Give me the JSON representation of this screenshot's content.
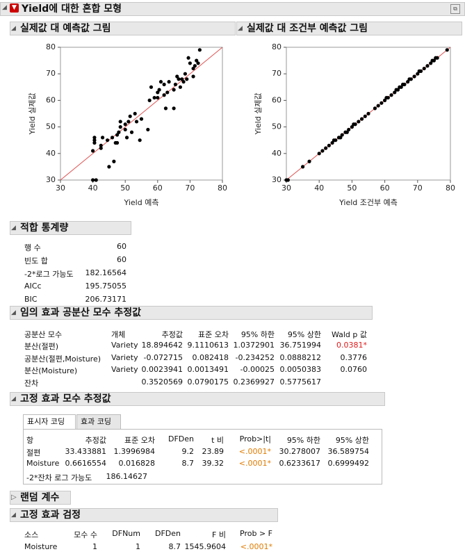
{
  "header": {
    "title": "Yield에 대한 혼합 모형"
  },
  "chart_data": [
    {
      "type": "scatter",
      "title": "실제값 대 예측값 그림",
      "x_label": "Yield 예측",
      "y_label": "Yield 실제값",
      "x": [
        40,
        41,
        40,
        40.5,
        40.5,
        40.5,
        42.5,
        42.5,
        43,
        44.5,
        45,
        46,
        46.5,
        47,
        47.5,
        47.5,
        48,
        48.5,
        48.5,
        50,
        50,
        50.5,
        51,
        51.5,
        52,
        53,
        53.5,
        54.5,
        55,
        57,
        57.5,
        58,
        59,
        60,
        60,
        60.5,
        61,
        62,
        62,
        62.5,
        63,
        63.5,
        65,
        65,
        65.5,
        66,
        66.5,
        67,
        67.5,
        68,
        68.5,
        69,
        69.5,
        70,
        71,
        71,
        71.5,
        72,
        72.5,
        73
      ],
      "values": [
        30,
        30,
        41,
        44,
        45,
        46,
        42,
        43,
        46,
        45,
        35,
        46,
        37,
        44,
        44,
        47,
        48,
        50,
        52,
        51,
        49,
        46,
        52,
        54,
        48,
        55,
        52,
        45,
        53,
        49,
        60,
        65,
        61,
        61,
        63,
        64,
        67,
        66,
        62,
        57,
        63,
        67,
        57,
        64,
        66,
        69,
        68,
        65,
        68,
        67,
        70,
        68,
        76,
        74,
        69,
        72,
        73,
        75,
        74,
        79
      ],
      "xlim": [
        30,
        80
      ],
      "ylim": [
        30,
        80
      ],
      "xticks": [
        30,
        40,
        50,
        60,
        70,
        80
      ],
      "yticks": [
        30,
        40,
        50,
        60,
        70,
        80
      ],
      "color": "#000000",
      "line_color": "#e05050"
    },
    {
      "type": "scatter",
      "title": "실제값 대 조건부 예측값 그림",
      "x_label": "Yield 조건부 예측",
      "y_label": "Yield 실제값",
      "x": [
        30,
        30.5,
        35,
        37,
        40,
        41,
        42,
        43,
        44,
        44.5,
        45,
        46,
        46.5,
        47,
        48,
        48.5,
        49,
        50,
        50.5,
        51,
        52,
        53,
        54,
        55,
        57,
        58,
        59,
        60,
        60.5,
        61,
        62,
        63,
        63.5,
        64,
        64.5,
        65,
        65.5,
        66,
        67,
        67.5,
        68,
        69,
        70,
        70.5,
        71,
        72,
        73,
        74,
        74.5,
        75,
        75.5,
        76,
        79
      ],
      "values": [
        30,
        30,
        35,
        37,
        40,
        41,
        42,
        43,
        44,
        45,
        45,
        46,
        46,
        47,
        48,
        48,
        49,
        50,
        51,
        51,
        52,
        53,
        54,
        55,
        57,
        58,
        59,
        60,
        61,
        61,
        62,
        63,
        64,
        64,
        65,
        65,
        66,
        66,
        67,
        68,
        68,
        69,
        70,
        71,
        71,
        72,
        73,
        74,
        75,
        75,
        76,
        76,
        79
      ],
      "xlim": [
        30,
        80
      ],
      "ylim": [
        30,
        80
      ],
      "xticks": [
        30,
        40,
        50,
        60,
        70,
        80
      ],
      "yticks": [
        30,
        40,
        50,
        60,
        70,
        80
      ],
      "color": "#000000",
      "line_color": "#e05050"
    }
  ],
  "fit_statistics": {
    "title": "적합 통계량",
    "rows": [
      [
        "행 수",
        "60"
      ],
      [
        "빈도 합",
        "60"
      ],
      [
        "-2*로그 가능도",
        "182.16564"
      ],
      [
        "AICc",
        "195.75055"
      ],
      [
        "BIC",
        "206.73171"
      ]
    ]
  },
  "covariance_parameters": {
    "title": "임의 효과 공분산 모수 추정값",
    "alert_color": "#e0191b",
    "columns": [
      "공분산 모수",
      "개체",
      "추정값",
      "표준 오차",
      "95% 하한",
      "95% 상한",
      "Wald p 값"
    ],
    "rows": [
      [
        "분산(절편)",
        "Variety",
        "18.894642",
        "9.1110613",
        "1.0372901",
        "36.751994",
        "0.0381*"
      ],
      [
        "공분산(절편,Moisture)",
        "Variety",
        "-0.072715",
        "0.082418",
        "-0.234252",
        "0.0888212",
        "0.3776"
      ],
      [
        "분산(Moisture)",
        "Variety",
        "0.0023941",
        "0.0013491",
        "-0.00025",
        "0.0050383",
        "0.0760"
      ],
      [
        "잔차",
        null,
        "0.3520569",
        "0.0790175",
        "0.2369927",
        "0.5775617",
        null
      ]
    ]
  },
  "fixed_parameters": {
    "title": "고정 효과 모수 추정값",
    "tabs": [
      "표시자 코딩",
      "효과 코딩"
    ],
    "alert_color": "#e07b00",
    "columns": [
      "항",
      "추정값",
      "표준 오차",
      "DFDen",
      "t 비",
      "Prob>|t|",
      "95% 하한",
      "95% 상한"
    ],
    "rows": [
      [
        "절편",
        "33.433881",
        "1.3996984",
        "9.2",
        "23.89",
        "<.0001*",
        "30.278007",
        "36.589754"
      ],
      [
        "Moisture",
        "0.6616554",
        "0.016828",
        "8.7",
        "39.32",
        "<.0001*",
        "0.6233617",
        "0.6999492"
      ]
    ],
    "footer": [
      "-2*잔차 로그 가능도",
      "186.14627"
    ]
  },
  "random_coefficients": {
    "title": "랜덤 계수"
  },
  "fixed_tests": {
    "title": "고정 효과 검정",
    "alert_color": "#e07b00",
    "columns": [
      "소스",
      "모수 수",
      "DFNum",
      "DFDen",
      "F 비",
      "Prob > F"
    ],
    "rows": [
      [
        "Moisture",
        "1",
        "1",
        "8.7",
        "1545.9604",
        "<.0001*"
      ]
    ]
  }
}
